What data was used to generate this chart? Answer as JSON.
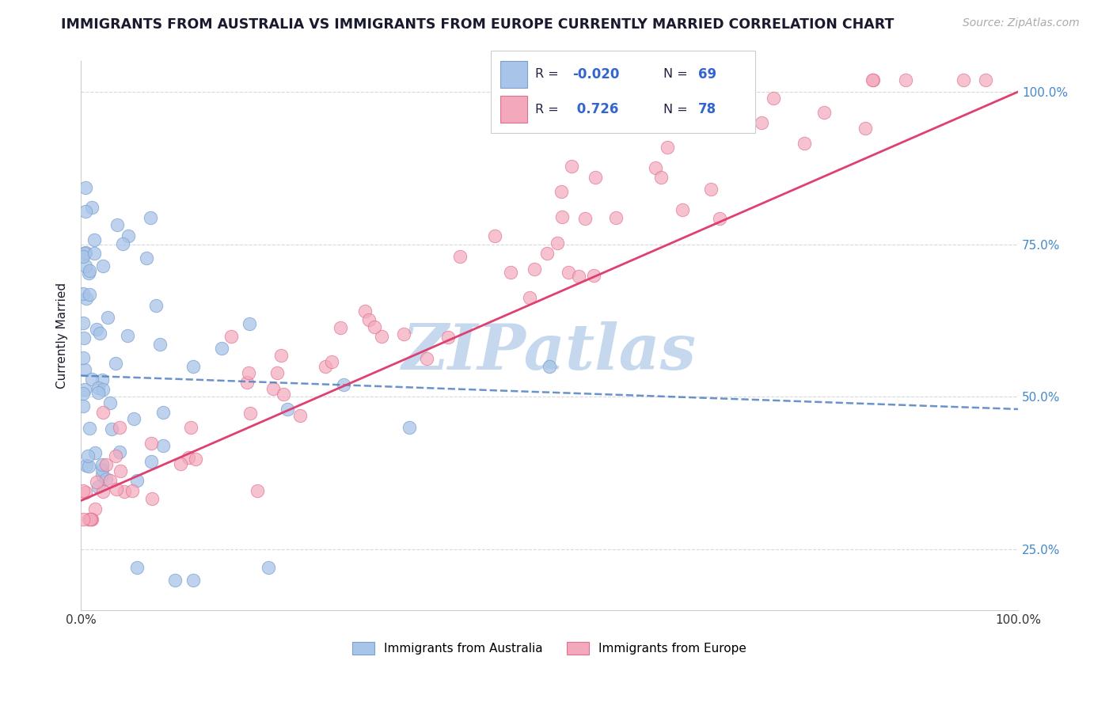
{
  "title": "IMMIGRANTS FROM AUSTRALIA VS IMMIGRANTS FROM EUROPE CURRENTLY MARRIED CORRELATION CHART",
  "source_text": "Source: ZipAtlas.com",
  "ylabel": "Currently Married",
  "xlim": [
    0.0,
    1.0
  ],
  "ylim": [
    0.15,
    1.05
  ],
  "australia_color": "#a8c4e8",
  "australia_edge": "#7aa0d0",
  "europe_color": "#f4a8bc",
  "europe_edge": "#e07090",
  "trendline_australia_color": "#5080c0",
  "trendline_europe_color": "#e04070",
  "watermark_color": "#c5d8ee",
  "watermark_text": "ZIPatlas",
  "background_color": "#ffffff",
  "grid_color": "#d8d8d8",
  "title_color": "#1a1a2e",
  "label_color": "#1a1a2e",
  "r_value_color": "#3366cc",
  "right_axis_color": "#4488cc",
  "legend_box_color": "#eeeeee"
}
